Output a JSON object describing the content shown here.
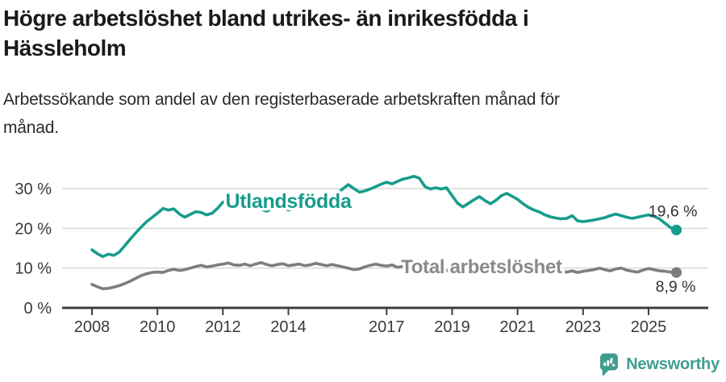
{
  "header": {
    "title_lines": [
      "Högre arbetslöshet bland utrikes- än inrikesfödda i",
      "Hässleholm"
    ],
    "subtitle_lines": [
      "Arbetssökande som andel av den registerbaserade arbetskraften månad för",
      "månad."
    ]
  },
  "colors": {
    "accent_teal": "#179c8b",
    "line_gray": "#7d7d7d",
    "series_label_gray": "#8a8a8a",
    "logo_teal": "#3f9d8f",
    "axis": "#3f3f3f",
    "grid": "#d9d9d9",
    "tick_label": "#3a3a3a",
    "value_label": "#333333"
  },
  "branding": {
    "logo_text": "Newsworthy"
  },
  "chart_data": {
    "type": "line",
    "title": "Högre arbetslöshet bland utrikes- än inrikesfödda i Hässleholm",
    "subtitle": "Arbetssökande som andel av den registerbaserade arbetskraften månad för månad.",
    "xlabel": "",
    "ylabel": "",
    "grid": true,
    "legend_position": "inline-labels",
    "xlim": [
      2007.1,
      2026.8
    ],
    "ylim": [
      0,
      35
    ],
    "x_ticks": [
      2008,
      2010,
      2012,
      2014,
      2017,
      2019,
      2021,
      2023,
      2025
    ],
    "y_ticks": [
      {
        "value": 0,
        "label": "0 %"
      },
      {
        "value": 10,
        "label": "10 %"
      },
      {
        "value": 20,
        "label": "20 %"
      },
      {
        "value": 30,
        "label": "30 %"
      }
    ],
    "series": [
      {
        "name": "Utlandsfödda",
        "color": "#179c8b",
        "label_color": "#179c8b",
        "label_size": 25,
        "label_at": [
          2014.0,
          26.8
        ],
        "end_label": "19,6 %",
        "end_value": 19.6,
        "end_label_offset": [
          26,
          -17
        ],
        "points": [
          [
            2008.0,
            14.6
          ],
          [
            2008.17,
            13.6
          ],
          [
            2008.33,
            12.9
          ],
          [
            2008.5,
            13.5
          ],
          [
            2008.67,
            13.2
          ],
          [
            2008.83,
            14.0
          ],
          [
            2009.0,
            15.6
          ],
          [
            2009.17,
            17.3
          ],
          [
            2009.33,
            18.8
          ],
          [
            2009.5,
            20.3
          ],
          [
            2009.67,
            21.7
          ],
          [
            2009.83,
            22.7
          ],
          [
            2010.0,
            23.8
          ],
          [
            2010.17,
            25.0
          ],
          [
            2010.33,
            24.6
          ],
          [
            2010.5,
            24.9
          ],
          [
            2010.67,
            23.6
          ],
          [
            2010.83,
            22.8
          ],
          [
            2011.0,
            23.5
          ],
          [
            2011.17,
            24.2
          ],
          [
            2011.33,
            24.0
          ],
          [
            2011.5,
            23.4
          ],
          [
            2011.67,
            23.8
          ],
          [
            2011.83,
            25.0
          ],
          [
            2012.0,
            26.6
          ],
          [
            2012.17,
            27.0
          ],
          [
            2012.33,
            25.8
          ],
          [
            2012.5,
            25.3
          ],
          [
            2012.67,
            25.7
          ],
          [
            2012.83,
            25.2
          ],
          [
            2013.0,
            25.4
          ],
          [
            2013.17,
            24.8
          ],
          [
            2013.33,
            24.3
          ],
          [
            2013.5,
            24.9
          ],
          [
            2013.67,
            25.3
          ],
          [
            2013.83,
            25.0
          ],
          [
            2014.0,
            24.6
          ],
          [
            2014.17,
            25.0
          ],
          [
            2014.33,
            25.4
          ],
          [
            2014.5,
            25.2
          ],
          [
            2014.67,
            25.6
          ],
          [
            2014.83,
            26.0
          ],
          [
            2015.0,
            26.4
          ],
          [
            2015.17,
            27.0
          ],
          [
            2015.33,
            27.8
          ],
          [
            2015.5,
            28.8
          ],
          [
            2015.67,
            30.0
          ],
          [
            2015.83,
            31.0
          ],
          [
            2016.0,
            30.0
          ],
          [
            2016.17,
            29.1
          ],
          [
            2016.33,
            29.4
          ],
          [
            2016.5,
            29.9
          ],
          [
            2016.67,
            30.5
          ],
          [
            2016.83,
            31.1
          ],
          [
            2017.0,
            31.6
          ],
          [
            2017.17,
            31.2
          ],
          [
            2017.33,
            31.8
          ],
          [
            2017.5,
            32.4
          ],
          [
            2017.67,
            32.7
          ],
          [
            2017.83,
            33.1
          ],
          [
            2018.0,
            32.6
          ],
          [
            2018.17,
            30.5
          ],
          [
            2018.33,
            29.9
          ],
          [
            2018.5,
            30.2
          ],
          [
            2018.67,
            29.9
          ],
          [
            2018.83,
            30.2
          ],
          [
            2019.0,
            28.2
          ],
          [
            2019.17,
            26.3
          ],
          [
            2019.33,
            25.4
          ],
          [
            2019.5,
            26.3
          ],
          [
            2019.67,
            27.2
          ],
          [
            2019.83,
            28.0
          ],
          [
            2020.0,
            27.0
          ],
          [
            2020.17,
            26.2
          ],
          [
            2020.33,
            27.0
          ],
          [
            2020.5,
            28.2
          ],
          [
            2020.67,
            28.8
          ],
          [
            2020.83,
            28.1
          ],
          [
            2021.0,
            27.3
          ],
          [
            2021.17,
            26.2
          ],
          [
            2021.33,
            25.3
          ],
          [
            2021.5,
            24.6
          ],
          [
            2021.67,
            24.1
          ],
          [
            2021.83,
            23.4
          ],
          [
            2022.0,
            22.9
          ],
          [
            2022.17,
            22.6
          ],
          [
            2022.33,
            22.4
          ],
          [
            2022.5,
            22.5
          ],
          [
            2022.67,
            23.2
          ],
          [
            2022.83,
            21.9
          ],
          [
            2023.0,
            21.7
          ],
          [
            2023.17,
            21.9
          ],
          [
            2023.33,
            22.1
          ],
          [
            2023.5,
            22.4
          ],
          [
            2023.67,
            22.7
          ],
          [
            2023.83,
            23.2
          ],
          [
            2024.0,
            23.6
          ],
          [
            2024.17,
            23.2
          ],
          [
            2024.33,
            22.8
          ],
          [
            2024.5,
            22.5
          ],
          [
            2024.67,
            22.8
          ],
          [
            2024.83,
            23.1
          ],
          [
            2025.0,
            23.4
          ],
          [
            2025.17,
            23.0
          ],
          [
            2025.33,
            22.4
          ],
          [
            2025.5,
            21.3
          ],
          [
            2025.67,
            20.2
          ],
          [
            2025.85,
            19.6
          ]
        ]
      },
      {
        "name": "Total arbetslöshet",
        "color": "#7d7d7d",
        "label_color": "#8a8a8a",
        "label_size": 24,
        "label_at": [
          2019.9,
          10.3
        ],
        "end_label": "8,9 %",
        "end_value": 8.9,
        "end_label_offset": [
          24,
          24
        ],
        "points": [
          [
            2008.0,
            5.9
          ],
          [
            2008.17,
            5.3
          ],
          [
            2008.33,
            4.8
          ],
          [
            2008.5,
            4.9
          ],
          [
            2008.67,
            5.2
          ],
          [
            2008.83,
            5.6
          ],
          [
            2009.0,
            6.1
          ],
          [
            2009.17,
            6.7
          ],
          [
            2009.33,
            7.4
          ],
          [
            2009.5,
            8.1
          ],
          [
            2009.67,
            8.6
          ],
          [
            2009.83,
            8.9
          ],
          [
            2010.0,
            9.0
          ],
          [
            2010.17,
            8.9
          ],
          [
            2010.33,
            9.4
          ],
          [
            2010.5,
            9.7
          ],
          [
            2010.67,
            9.4
          ],
          [
            2010.83,
            9.6
          ],
          [
            2011.0,
            10.0
          ],
          [
            2011.17,
            10.4
          ],
          [
            2011.33,
            10.7
          ],
          [
            2011.5,
            10.3
          ],
          [
            2011.67,
            10.5
          ],
          [
            2011.83,
            10.8
          ],
          [
            2012.0,
            11.0
          ],
          [
            2012.17,
            11.3
          ],
          [
            2012.33,
            10.8
          ],
          [
            2012.5,
            10.7
          ],
          [
            2012.67,
            11.0
          ],
          [
            2012.83,
            10.6
          ],
          [
            2013.0,
            11.0
          ],
          [
            2013.17,
            11.4
          ],
          [
            2013.33,
            10.9
          ],
          [
            2013.5,
            10.6
          ],
          [
            2013.67,
            10.9
          ],
          [
            2013.83,
            11.1
          ],
          [
            2014.0,
            10.6
          ],
          [
            2014.17,
            10.8
          ],
          [
            2014.33,
            11.0
          ],
          [
            2014.5,
            10.6
          ],
          [
            2014.67,
            10.8
          ],
          [
            2014.83,
            11.2
          ],
          [
            2015.0,
            10.9
          ],
          [
            2015.17,
            10.6
          ],
          [
            2015.33,
            10.9
          ],
          [
            2015.5,
            10.6
          ],
          [
            2015.67,
            10.3
          ],
          [
            2015.83,
            10.0
          ],
          [
            2016.0,
            9.6
          ],
          [
            2016.17,
            9.8
          ],
          [
            2016.33,
            10.3
          ],
          [
            2016.5,
            10.7
          ],
          [
            2016.67,
            11.0
          ],
          [
            2016.83,
            10.7
          ],
          [
            2017.0,
            10.5
          ],
          [
            2017.17,
            10.8
          ],
          [
            2017.33,
            10.2
          ],
          [
            2017.5,
            10.4
          ],
          [
            2017.67,
            10.2
          ],
          [
            2017.83,
            10.0
          ],
          [
            2018.0,
            9.9
          ],
          [
            2018.17,
            9.8
          ],
          [
            2018.33,
            9.6
          ],
          [
            2018.5,
            9.5
          ],
          [
            2018.67,
            9.5
          ],
          [
            2018.83,
            9.4
          ],
          [
            2019.0,
            9.3
          ],
          [
            2019.17,
            9.2
          ],
          [
            2019.33,
            9.2
          ],
          [
            2019.5,
            9.3
          ],
          [
            2019.67,
            9.4
          ],
          [
            2019.83,
            9.6
          ],
          [
            2020.0,
            9.9
          ],
          [
            2020.17,
            10.6
          ],
          [
            2020.33,
            11.2
          ],
          [
            2020.5,
            11.5
          ],
          [
            2020.67,
            11.3
          ],
          [
            2020.83,
            11.1
          ],
          [
            2021.0,
            10.9
          ],
          [
            2021.17,
            10.6
          ],
          [
            2021.33,
            10.3
          ],
          [
            2021.5,
            10.0
          ],
          [
            2021.67,
            9.7
          ],
          [
            2021.83,
            9.5
          ],
          [
            2022.0,
            9.4
          ],
          [
            2022.17,
            9.3
          ],
          [
            2022.33,
            9.2
          ],
          [
            2022.5,
            9.0
          ],
          [
            2022.67,
            9.3
          ],
          [
            2022.83,
            8.9
          ],
          [
            2023.0,
            9.2
          ],
          [
            2023.17,
            9.4
          ],
          [
            2023.33,
            9.6
          ],
          [
            2023.5,
            10.0
          ],
          [
            2023.67,
            9.6
          ],
          [
            2023.83,
            9.3
          ],
          [
            2024.0,
            9.8
          ],
          [
            2024.17,
            10.0
          ],
          [
            2024.33,
            9.5
          ],
          [
            2024.5,
            9.2
          ],
          [
            2024.67,
            9.0
          ],
          [
            2024.83,
            9.5
          ],
          [
            2025.0,
            9.9
          ],
          [
            2025.17,
            9.6
          ],
          [
            2025.33,
            9.3
          ],
          [
            2025.5,
            9.2
          ],
          [
            2025.67,
            9.0
          ],
          [
            2025.85,
            8.9
          ]
        ]
      }
    ]
  }
}
